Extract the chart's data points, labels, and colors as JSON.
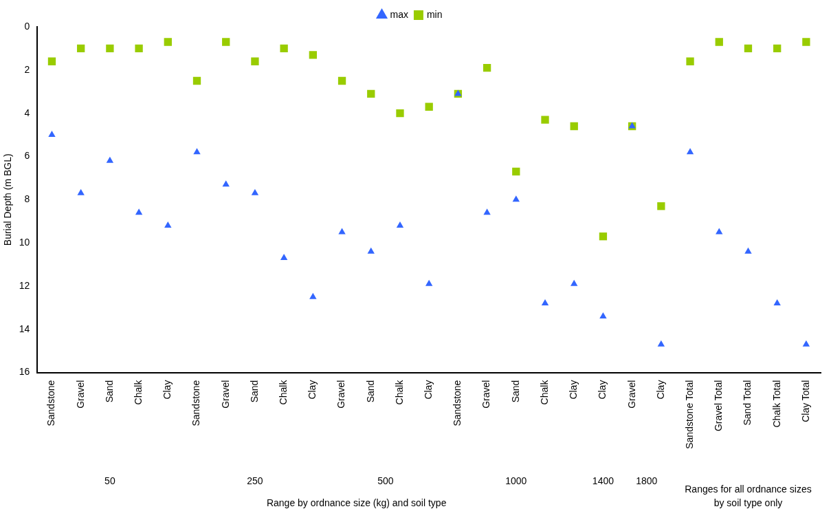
{
  "chart_data": {
    "type": "scatter",
    "categories": [
      "Sandstone",
      "Gravel",
      "Sand",
      "Chalk",
      "Clay",
      "Sandstone",
      "Gravel",
      "Sand",
      "Chalk",
      "Clay",
      "Gravel",
      "Sand",
      "Chalk",
      "Clay",
      "Sandstone",
      "Gravel",
      "Sand",
      "Chalk",
      "Clay",
      "Clay",
      "Gravel",
      "Clay",
      "Sandstone Total",
      "Gravel Total",
      "Sand Total",
      "Chalk Total",
      "Clay Total"
    ],
    "series": [
      {
        "name": "min",
        "color": "#99cc00",
        "marker": "square",
        "values": [
          1.6,
          1.0,
          1.0,
          1.0,
          0.7,
          2.5,
          0.7,
          1.6,
          1.0,
          1.3,
          2.5,
          3.1,
          4.0,
          3.7,
          3.1,
          1.9,
          6.7,
          4.3,
          4.6,
          9.7,
          4.6,
          8.3,
          1.6,
          0.7,
          1.0,
          1.0,
          0.7
        ]
      },
      {
        "name": "max",
        "color": "#3366ff",
        "marker": "triangle",
        "values": [
          5.0,
          7.7,
          6.2,
          8.6,
          9.2,
          5.8,
          7.3,
          7.7,
          10.7,
          12.5,
          9.5,
          10.4,
          9.2,
          11.9,
          3.1,
          8.6,
          8.0,
          12.8,
          11.9,
          13.4,
          4.6,
          14.7,
          5.8,
          9.5,
          10.4,
          12.8,
          14.7
        ]
      }
    ],
    "ylabel": "Burial Depth (m BGL)",
    "ylim": [
      16,
      0
    ],
    "yticks": [
      0,
      2,
      4,
      6,
      8,
      10,
      12,
      14,
      16
    ],
    "legend": "top",
    "grid": false,
    "annotations": [
      "50",
      "250",
      "500",
      "1000",
      "1400",
      "1800",
      "Range by ordnance size (kg) and soil type",
      "Ranges for all ordnance sizes by soil type only"
    ]
  }
}
